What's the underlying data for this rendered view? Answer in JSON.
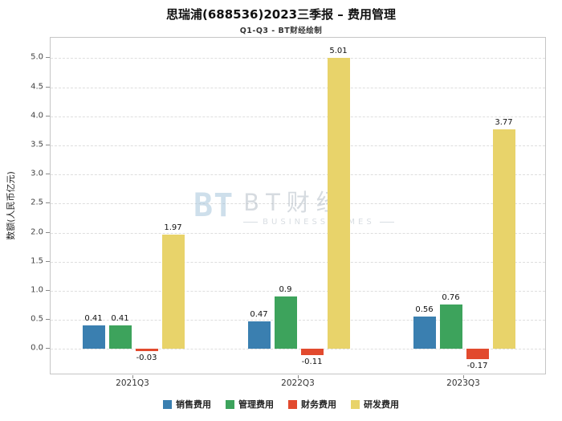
{
  "page": {
    "title": "思瑞浦(688536)2023三季报 – 费用管理",
    "subtitle": "Q1-Q3 - BT财经绘制"
  },
  "watermark": {
    "logo": "BT",
    "brand": "BT财经",
    "subtext": "BUSINESS TIMES"
  },
  "chart_data": {
    "type": "bar",
    "title": "思瑞浦(688536)2023三季报 – 费用管理",
    "subtitle": "Q1-Q3 - BT财经绘制",
    "categories": [
      "2021Q3",
      "2022Q3",
      "2023Q3"
    ],
    "series": [
      {
        "name": "销售费用",
        "color": "#3a7fb0",
        "values": [
          0.41,
          0.47,
          0.56
        ]
      },
      {
        "name": "管理费用",
        "color": "#3da35c",
        "values": [
          0.41,
          0.9,
          0.76
        ]
      },
      {
        "name": "财务费用",
        "color": "#e24a2e",
        "values": [
          -0.03,
          -0.11,
          -0.17
        ]
      },
      {
        "name": "研发费用",
        "color": "#e8d36a",
        "values": [
          1.97,
          5.01,
          3.77
        ]
      }
    ],
    "xlabel": "",
    "ylabel": "数额(人民币亿元)",
    "ylim": [
      -0.45,
      5.35
    ],
    "yticks": [
      0.0,
      0.5,
      1.0,
      1.5,
      2.0,
      2.5,
      3.0,
      3.5,
      4.0,
      4.5,
      5.0
    ],
    "grid": true,
    "legend_position": "bottom"
  }
}
